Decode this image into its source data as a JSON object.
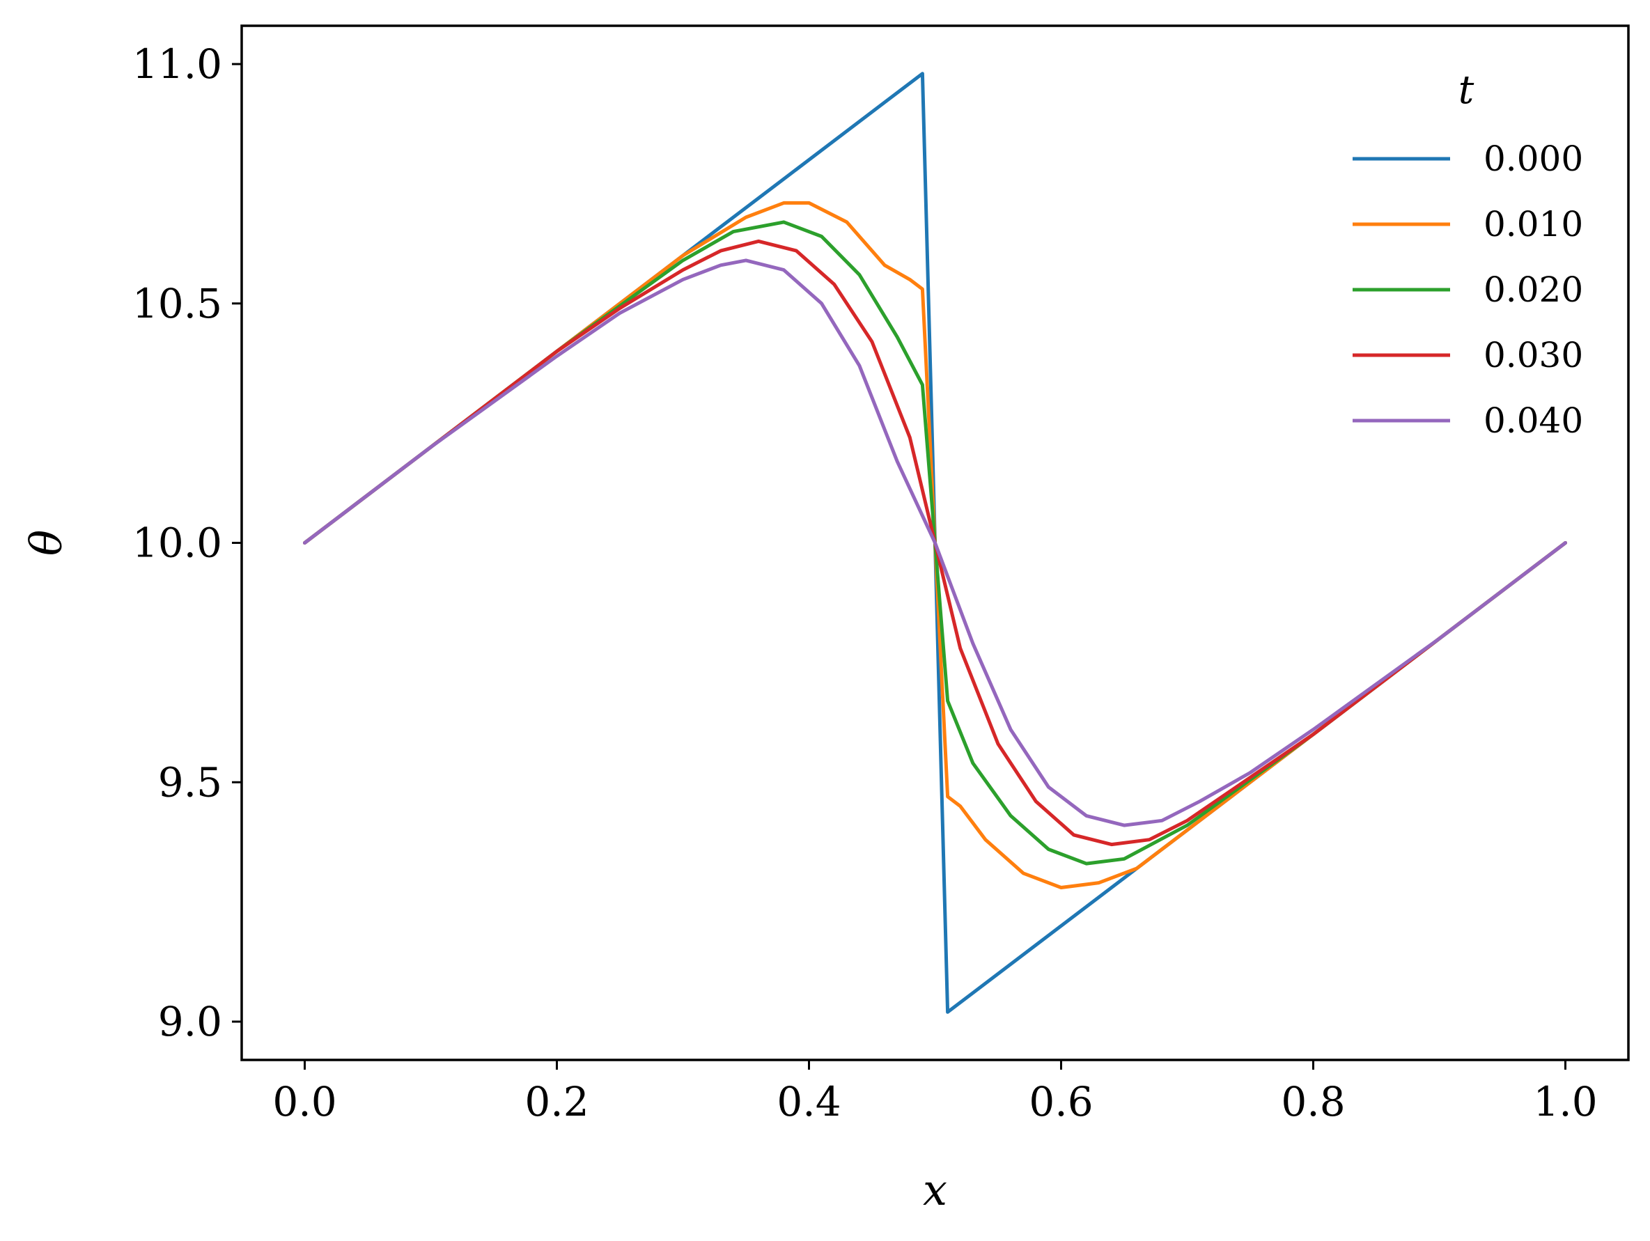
{
  "chart_data": {
    "type": "line",
    "xlabel": "x",
    "ylabel": "θ",
    "xlim": [
      -0.05,
      1.05
    ],
    "ylim": [
      8.92,
      11.08
    ],
    "xticks": [
      0.0,
      0.2,
      0.4,
      0.6,
      0.8,
      1.0
    ],
    "xtick_labels": [
      "0.0",
      "0.2",
      "0.4",
      "0.6",
      "0.8",
      "1.0"
    ],
    "yticks": [
      9.0,
      9.5,
      10.0,
      10.5,
      11.0
    ],
    "ytick_labels": [
      "9.0",
      "9.5",
      "10.0",
      "10.5",
      "11.0"
    ],
    "grid": false,
    "legend": {
      "title": "t",
      "placement": "top-right"
    },
    "series": [
      {
        "name": "0.000",
        "color": "#1f77b4",
        "x": [
          0.0,
          0.1,
          0.2,
          0.3,
          0.4,
          0.49,
          0.51,
          0.6,
          0.7,
          0.8,
          0.9,
          1.0
        ],
        "y": [
          10.0,
          10.2,
          10.4,
          10.6,
          10.8,
          10.98,
          9.02,
          9.2,
          9.4,
          9.6,
          9.8,
          10.0
        ]
      },
      {
        "name": "0.010",
        "color": "#ff7f0e",
        "x": [
          0.0,
          0.1,
          0.2,
          0.3,
          0.35,
          0.38,
          0.4,
          0.43,
          0.46,
          0.48,
          0.49,
          0.5,
          0.51,
          0.52,
          0.54,
          0.57,
          0.6,
          0.63,
          0.66,
          0.7,
          0.8,
          0.9,
          1.0
        ],
        "y": [
          10.0,
          10.2,
          10.4,
          10.6,
          10.68,
          10.71,
          10.71,
          10.67,
          10.58,
          10.55,
          10.53,
          10.0,
          9.47,
          9.45,
          9.38,
          9.31,
          9.28,
          9.29,
          9.32,
          9.4,
          9.6,
          9.8,
          10.0
        ]
      },
      {
        "name": "0.020",
        "color": "#2ca02c",
        "x": [
          0.0,
          0.1,
          0.2,
          0.3,
          0.34,
          0.38,
          0.41,
          0.44,
          0.47,
          0.49,
          0.5,
          0.51,
          0.53,
          0.56,
          0.59,
          0.62,
          0.65,
          0.7,
          0.8,
          0.9,
          1.0
        ],
        "y": [
          10.0,
          10.2,
          10.4,
          10.59,
          10.65,
          10.67,
          10.64,
          10.56,
          10.43,
          10.33,
          10.0,
          9.67,
          9.54,
          9.43,
          9.36,
          9.33,
          9.34,
          9.41,
          9.6,
          9.8,
          10.0
        ]
      },
      {
        "name": "0.030",
        "color": "#d62728",
        "x": [
          0.0,
          0.1,
          0.2,
          0.25,
          0.3,
          0.33,
          0.36,
          0.39,
          0.42,
          0.45,
          0.48,
          0.5,
          0.52,
          0.55,
          0.58,
          0.61,
          0.64,
          0.67,
          0.7,
          0.8,
          0.9,
          1.0
        ],
        "y": [
          10.0,
          10.2,
          10.4,
          10.49,
          10.57,
          10.61,
          10.63,
          10.61,
          10.54,
          10.42,
          10.22,
          10.0,
          9.78,
          9.58,
          9.46,
          9.39,
          9.37,
          9.38,
          9.42,
          9.6,
          9.8,
          10.0
        ]
      },
      {
        "name": "0.040",
        "color": "#9467bd",
        "x": [
          0.0,
          0.1,
          0.2,
          0.25,
          0.3,
          0.33,
          0.35,
          0.38,
          0.41,
          0.44,
          0.47,
          0.5,
          0.53,
          0.56,
          0.59,
          0.62,
          0.65,
          0.68,
          0.71,
          0.75,
          0.8,
          0.9,
          1.0
        ],
        "y": [
          10.0,
          10.2,
          10.39,
          10.48,
          10.55,
          10.58,
          10.59,
          10.57,
          10.5,
          10.37,
          10.17,
          10.0,
          9.79,
          9.61,
          9.49,
          9.43,
          9.41,
          9.42,
          9.46,
          9.52,
          9.61,
          9.8,
          10.0
        ]
      }
    ]
  }
}
